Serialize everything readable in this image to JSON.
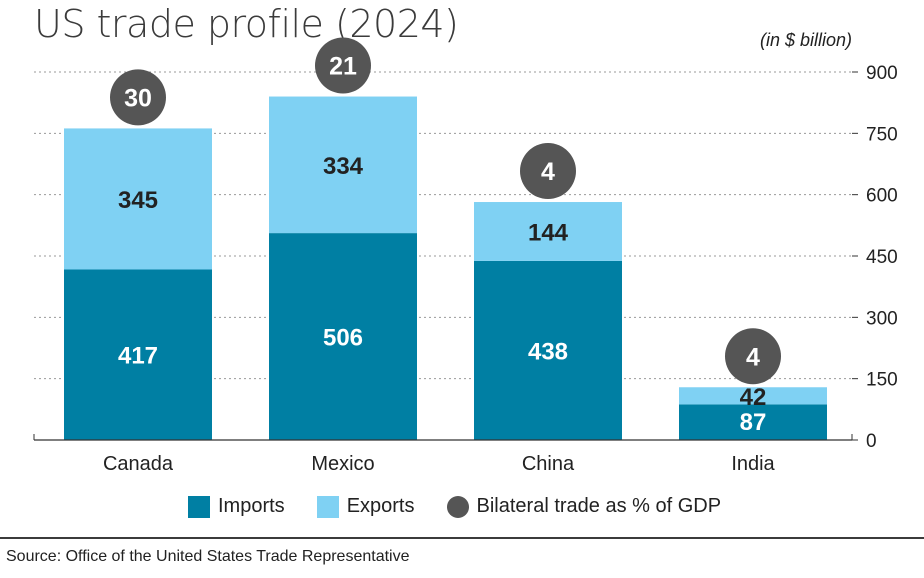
{
  "title": "US trade profile (2024)",
  "unit": "(in $ billion)",
  "source": "Source: Office of the United States Trade Representative",
  "colors": {
    "imports": "#007fa3",
    "exports": "#7fd1f3",
    "gdp_badge": "#555555",
    "text_dark": "#222222",
    "grid": "#9a9a9a"
  },
  "legend": [
    {
      "label": "Imports",
      "color": "#007fa3",
      "shape": "square"
    },
    {
      "label": "Exports",
      "color": "#7fd1f3",
      "shape": "square"
    },
    {
      "label": "Bilateral trade as % of GDP",
      "color": "#555555",
      "shape": "circle"
    }
  ],
  "chart_data": {
    "type": "bar",
    "stacked": true,
    "title": "US trade profile (2024)",
    "ylabel": "(in $ billion)",
    "categories": [
      "Canada",
      "Mexico",
      "China",
      "India"
    ],
    "series": [
      {
        "name": "Imports",
        "values": [
          417,
          506,
          438,
          87
        ]
      },
      {
        "name": "Exports",
        "values": [
          345,
          334,
          144,
          42
        ]
      }
    ],
    "annotations": {
      "name": "Bilateral trade as % of GDP",
      "values": [
        30,
        21,
        4,
        4
      ]
    },
    "yticks": [
      0,
      150,
      300,
      450,
      600,
      750,
      900
    ],
    "ylim": [
      0,
      900
    ],
    "grid": true,
    "y_axis_side": "right",
    "legend_position": "bottom"
  }
}
